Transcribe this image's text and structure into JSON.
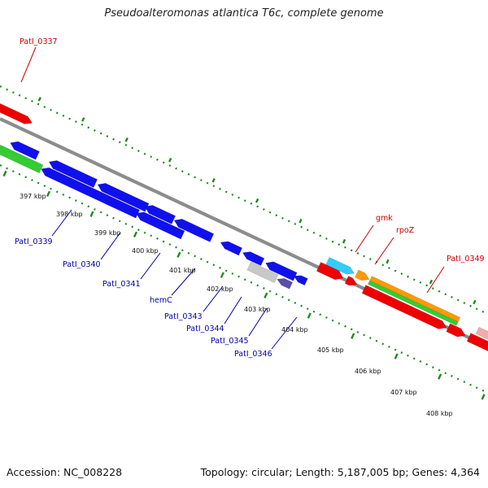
{
  "header": {
    "title": "Pseudoalteromonas atlantica T6c, complete genome"
  },
  "footer": {
    "accession": "Accession: NC_008228",
    "summary": "Topology: circular; Length: 5,187,005 bp; Genes: 4,364"
  },
  "colors": {
    "backbone": "#8c8c8c",
    "ticks": "#1e8a1e",
    "forward_gene_label": "#cc0000",
    "reverse_gene_label": "#0000aa",
    "blue": "#1010ee",
    "red": "#ee0000",
    "green": "#33cc33",
    "orange": "#ff9900",
    "cyan": "#33ccff",
    "gray": "#c8c8c8",
    "purple": "#5a4eaa",
    "pink": "#f2aaaa"
  },
  "scale": {
    "kbp_labels": [
      "397 kbp",
      "398 kbp",
      "399 kbp",
      "400 kbp",
      "401 kbp",
      "402 kbp",
      "403 kbp",
      "404 kbp",
      "405 kbp",
      "406 kbp",
      "407 kbp",
      "408 kbp"
    ]
  },
  "forward_genes": [
    "PatI_0337",
    "gmk",
    "rpoZ",
    "PatI_0349"
  ],
  "reverse_genes": [
    "PatI_0339",
    "PatI_0340",
    "PatI_0341",
    "hemC",
    "PatI_0343",
    "PatI_0344",
    "PatI_0345",
    "PatI_0346"
  ]
}
